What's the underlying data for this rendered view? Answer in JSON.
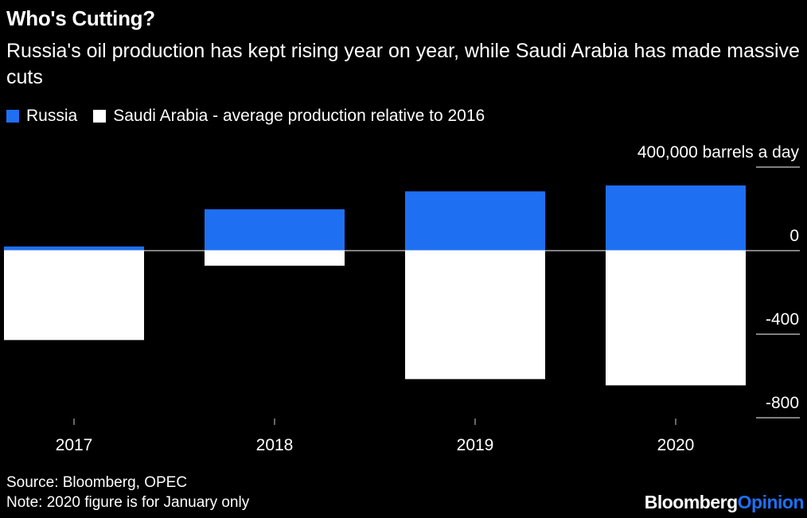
{
  "title": "Who's Cutting?",
  "subtitle": "Russia's oil production has kept rising year on year, while Saudi Arabia has made massive cuts",
  "source": "Source: Bloomberg, OPEC",
  "note": "Note: 2020 figure is for January only",
  "brand": {
    "part1": "Bloomberg",
    "part2": "Opinion"
  },
  "colors": {
    "russia": "#1f6ff2",
    "saudi": "#ffffff",
    "background": "#000000",
    "brand_accent": "#1f6ff2"
  },
  "chart_data": {
    "type": "bar",
    "categories": [
      "2017",
      "2018",
      "2019",
      "2020"
    ],
    "series": [
      {
        "name": "Russia",
        "values": [
          20,
          198,
          284,
          312
        ]
      },
      {
        "name": "Saudi Arabia - average production relative to 2016",
        "values": [
          -428,
          -72,
          -615,
          -645
        ]
      }
    ],
    "ylim": [
      -800,
      400
    ],
    "yticks": [
      400,
      0,
      -400,
      -800
    ],
    "ytick_labels": [
      "400,000 barrels a day",
      "0",
      "-400",
      "-800"
    ],
    "legend": "top-left",
    "grid": false
  }
}
